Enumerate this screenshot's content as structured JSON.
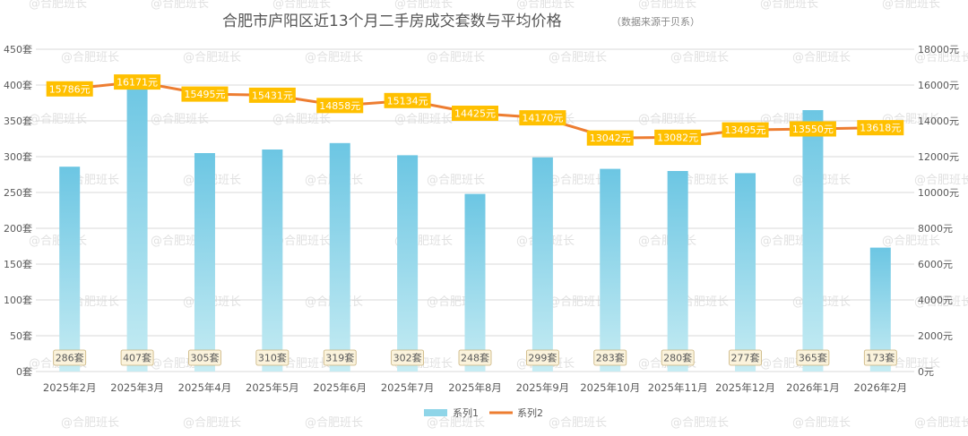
{
  "chart_data": {
    "type": "bar",
    "title": "合肥市庐阳区近13个月二手房成交套数与平均价格",
    "subtitle": "（数据来源于贝系）",
    "categories": [
      "2025年2月",
      "2025年3月",
      "2025年4月",
      "2025年5月",
      "2025年6月",
      "2025年7月",
      "2025年8月",
      "2025年9月",
      "2025年10月",
      "2025年11月",
      "2025年12月",
      "2026年1月",
      "2026年2月"
    ],
    "series": [
      {
        "name": "系列1",
        "kind": "bar",
        "axis": "left",
        "color": "#7ccde4",
        "values": [
          286,
          407,
          305,
          310,
          319,
          302,
          248,
          299,
          283,
          280,
          277,
          365,
          173
        ],
        "labels": [
          "286套",
          "407套",
          "305套",
          "310套",
          "319套",
          "302套",
          "248套",
          "299套",
          "283套",
          "280套",
          "277套",
          "365套",
          "173套"
        ]
      },
      {
        "name": "系列2",
        "kind": "line",
        "axis": "right",
        "color": "#ed7d31",
        "values": [
          15786,
          16171,
          15495,
          15431,
          14858,
          15134,
          14425,
          14170,
          13042,
          13082,
          13495,
          13550,
          13618
        ],
        "labels": [
          "15786元",
          "16171元",
          "15495元",
          "15431元",
          "14858元",
          "15134元",
          "14425元",
          "14170元",
          "13042元",
          "13082元",
          "13495元",
          "13550元",
          "13618元"
        ]
      }
    ],
    "y_left": {
      "range": [
        0,
        450
      ],
      "ticks": [
        0,
        50,
        100,
        150,
        200,
        250,
        300,
        350,
        400,
        450
      ],
      "tick_labels": [
        "0套",
        "50套",
        "100套",
        "150套",
        "200套",
        "250套",
        "300套",
        "350套",
        "400套",
        "450套"
      ]
    },
    "y_right": {
      "range": [
        0,
        18000
      ],
      "ticks": [
        0,
        2000,
        4000,
        6000,
        8000,
        10000,
        12000,
        14000,
        16000,
        18000
      ],
      "tick_labels": [
        "0元",
        "2000元",
        "4000元",
        "6000元",
        "8000元",
        "10000元",
        "12000元",
        "14000元",
        "16000元",
        "18000元"
      ]
    },
    "grid": true,
    "legend": "bottom",
    "watermark": "@合肥班长",
    "label_box_color": "#ffc000"
  }
}
